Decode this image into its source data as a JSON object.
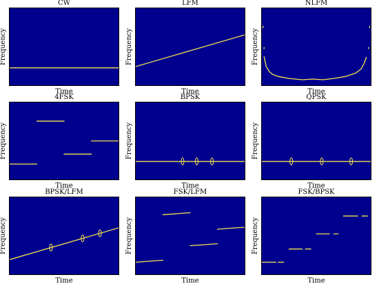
{
  "colors": {
    "background": "#00008f",
    "trace": "#f5e34a",
    "text": "#000000"
  },
  "chart_data": [
    {
      "type": "line",
      "title": "CW",
      "xlabel": "Time",
      "ylabel": "Frequency",
      "xlim": [
        0,
        1
      ],
      "ylim": [
        0,
        1
      ],
      "series": [
        {
          "segments": [
            [
              [
                0,
                0.18
              ],
              [
                1,
                0.18
              ]
            ]
          ]
        }
      ]
    },
    {
      "type": "line",
      "title": "LFM",
      "xlabel": "Time",
      "ylabel": "Frequency",
      "xlim": [
        0,
        1
      ],
      "ylim": [
        0,
        1
      ],
      "series": [
        {
          "segments": [
            [
              [
                0,
                0.2
              ],
              [
                1,
                0.68
              ]
            ]
          ]
        }
      ]
    },
    {
      "type": "line",
      "title": "NLFM",
      "xlabel": "Time",
      "ylabel": "Frequency",
      "xlim": [
        0,
        1
      ],
      "ylim": [
        0,
        1
      ],
      "series": [
        {
          "segments": [
            [
              [
                0.02,
                0.35
              ],
              [
                0.04,
                0.2
              ],
              [
                0.07,
                0.12
              ],
              [
                0.1,
                0.08
              ],
              [
                0.15,
                0.05
              ],
              [
                0.25,
                0.02
              ],
              [
                0.37,
                0.0
              ],
              [
                0.47,
                0.01
              ],
              [
                0.56,
                0.0
              ],
              [
                0.66,
                0.02
              ],
              [
                0.77,
                0.05
              ],
              [
                0.86,
                0.1
              ],
              [
                0.91,
                0.16
              ],
              [
                0.94,
                0.25
              ],
              [
                0.96,
                0.34
              ]
            ],
            [
              [
                0.01,
                0.79
              ],
              [
                0.01,
                0.81
              ]
            ],
            [
              [
                0.99,
                0.79
              ],
              [
                0.99,
                0.81
              ]
            ],
            [
              [
                0.02,
                0.47
              ],
              [
                0.02,
                0.49
              ]
            ],
            [
              [
                0.98,
                0.47
              ],
              [
                0.98,
                0.49
              ]
            ]
          ]
        }
      ]
    },
    {
      "type": "line",
      "title": "4FSK",
      "xlabel": "Time",
      "ylabel": "Frequency",
      "xlim": [
        0,
        1
      ],
      "ylim": [
        0,
        1
      ],
      "series": [
        {
          "segments": [
            [
              [
                0,
                0.15
              ],
              [
                0.25,
                0.15
              ]
            ],
            [
              [
                0.25,
                0.8
              ],
              [
                0.5,
                0.8
              ]
            ],
            [
              [
                0.5,
                0.3
              ],
              [
                0.75,
                0.3
              ]
            ],
            [
              [
                0.75,
                0.5
              ],
              [
                1,
                0.5
              ]
            ]
          ]
        }
      ]
    },
    {
      "type": "line",
      "title": "BPSK",
      "xlabel": "Time",
      "ylabel": "Frequency",
      "xlim": [
        0,
        1
      ],
      "ylim": [
        0,
        1
      ],
      "series": [
        {
          "segments": [
            [
              [
                0,
                0.19
              ],
              [
                1,
                0.19
              ]
            ]
          ]
        }
      ],
      "transitions": [
        0.43,
        0.56,
        0.7
      ]
    },
    {
      "type": "line",
      "title": "QPSK",
      "xlabel": "Time",
      "ylabel": "Frequency",
      "xlim": [
        0,
        1
      ],
      "ylim": [
        0,
        1
      ],
      "series": [
        {
          "segments": [
            [
              [
                0,
                0.19
              ],
              [
                1,
                0.19
              ]
            ]
          ]
        }
      ],
      "transitions": [
        0.27,
        0.55,
        0.82
      ]
    },
    {
      "type": "line",
      "title": "BPSK/LFM",
      "xlabel": "Time",
      "ylabel": "Frequency",
      "xlim": [
        0,
        1
      ],
      "ylim": [
        0,
        1
      ],
      "series": [
        {
          "segments": [
            [
              [
                0,
                0.14
              ],
              [
                1,
                0.62
              ]
            ]
          ]
        }
      ],
      "transitions": [
        0.38,
        0.67,
        0.83
      ]
    },
    {
      "type": "line",
      "title": "FSK/LFM",
      "xlabel": "Time",
      "ylabel": "Frequency",
      "xlim": [
        0,
        1
      ],
      "ylim": [
        0,
        1
      ],
      "series": [
        {
          "segments": [
            [
              [
                0,
                0.1
              ],
              [
                0.25,
                0.13
              ]
            ],
            [
              [
                0.25,
                0.82
              ],
              [
                0.5,
                0.85
              ]
            ],
            [
              [
                0.5,
                0.35
              ],
              [
                0.75,
                0.38
              ]
            ],
            [
              [
                0.75,
                0.6
              ],
              [
                1,
                0.63
              ]
            ]
          ]
        }
      ]
    },
    {
      "type": "line",
      "title": "FSK/BPSK",
      "xlabel": "Time",
      "ylabel": "Frequency",
      "xlim": [
        0,
        1
      ],
      "ylim": [
        0,
        1
      ],
      "series": [
        {
          "segments": [
            [
              [
                0,
                0.1
              ],
              [
                0.13,
                0.1
              ]
            ],
            [
              [
                0.15,
                0.1
              ],
              [
                0.2,
                0.1
              ]
            ],
            [
              [
                0.25,
                0.3
              ],
              [
                0.37,
                0.3
              ]
            ],
            [
              [
                0.4,
                0.3
              ],
              [
                0.45,
                0.3
              ]
            ],
            [
              [
                0.5,
                0.53
              ],
              [
                0.62,
                0.53
              ]
            ],
            [
              [
                0.66,
                0.53
              ],
              [
                0.7,
                0.53
              ]
            ],
            [
              [
                0.75,
                0.8
              ],
              [
                0.88,
                0.8
              ]
            ],
            [
              [
                0.92,
                0.8
              ],
              [
                0.97,
                0.8
              ]
            ]
          ]
        }
      ]
    }
  ]
}
